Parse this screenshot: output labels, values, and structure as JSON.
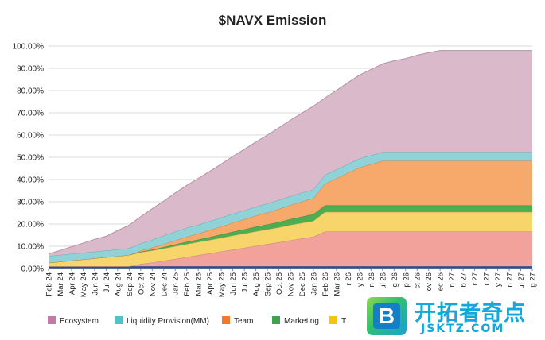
{
  "chart_data": {
    "type": "area",
    "stacked": true,
    "title": "$NAVX Emission",
    "xlabel": "",
    "ylabel": "",
    "ylim": [
      0,
      100
    ],
    "yticks": [
      "0.00%",
      "10.00%",
      "20.00%",
      "30.00%",
      "40.00%",
      "50.00%",
      "60.00%",
      "70.00%",
      "80.00%",
      "90.00%",
      "100.00%"
    ],
    "grid": true,
    "legend_position": "bottom",
    "x": [
      "Feb 24",
      "Mar 24",
      "Apr 24",
      "May 24",
      "Jun 24",
      "Jul 24",
      "Aug 24",
      "Sep 24",
      "Oct 24",
      "Nov 24",
      "Dec 24",
      "Jan 25",
      "Feb 25",
      "Mar 25",
      "Apr 25",
      "May 25",
      "Jun 25",
      "Jul 25",
      "Aug 25",
      "Sep 25",
      "Oct 25",
      "Nov 25",
      "Dec 25",
      "Jan 26",
      "Feb 26",
      "Mar 26",
      "Apr 26",
      "May 26",
      "Jun 26",
      "Jul 26",
      "Aug 26",
      "Sep 26",
      "Oct 26",
      "Nov 26",
      "Dec 26",
      "Jan 27",
      "Feb 27",
      "Mar 27",
      "Apr 27",
      "May 27",
      "Jun 27",
      "Jul 27",
      "Aug 27"
    ],
    "xtick_labels": [
      "Feb 24",
      "Mar 24",
      "Apr 24",
      "May 24",
      "Jun 24",
      "Jul 24",
      "Aug 24",
      "Sep 24",
      "Oct 24",
      "Nov 24",
      "Dec 24",
      "Jan 25",
      "Feb 25",
      "Mar 25",
      "Apr 25",
      "May 25",
      "Jun 25",
      "Jul 25",
      "Aug 25",
      "Sep 25",
      "Oct 25",
      "Nov 25",
      "Dec 25",
      "Jan 26",
      "Feb 26",
      "Mar 26",
      "r 26",
      "y 26",
      "n 26",
      "ul 26",
      "g 26",
      "p 26",
      "ct 26",
      "ov 26",
      "ec 26",
      "n 27",
      "b 27",
      "r 27",
      "r 27",
      "y 27",
      "n 27",
      "ul 27",
      "g 27"
    ],
    "series": [
      {
        "name": "",
        "color": "#1f4fa8",
        "values": [
          1,
          1,
          1,
          1,
          1,
          1,
          1,
          1,
          1,
          1,
          1,
          1,
          1,
          1,
          1,
          1,
          1,
          1,
          1,
          1,
          1,
          1,
          1,
          1,
          1,
          1,
          1,
          1,
          1,
          1,
          1,
          1,
          1,
          1,
          1,
          1,
          1,
          1,
          1,
          1,
          1,
          1,
          1
        ]
      },
      {
        "name": "",
        "color": "#f2a29a",
        "values": [
          0,
          0,
          0,
          0,
          0,
          0,
          0,
          0,
          1,
          1.7,
          2.5,
          3.3,
          4.2,
          5,
          5.8,
          6.7,
          7.5,
          8.3,
          9.2,
          10,
          10.8,
          11.7,
          12.5,
          13.3,
          15.6,
          15.6,
          15.6,
          15.6,
          15.6,
          15.6,
          15.6,
          15.6,
          15.6,
          15.6,
          15.6,
          15.6,
          15.6,
          15.6,
          15.6,
          15.6,
          15.6,
          15.6,
          15.6
        ]
      },
      {
        "name": "T",
        "color": "#f7d56a",
        "values": [
          1.6,
          2.1,
          2.6,
          3.1,
          3.6,
          4.1,
          4.6,
          5.1,
          5.3,
          5.4,
          5.5,
          5.7,
          5.8,
          5.9,
          6,
          6.1,
          6.3,
          6.4,
          6.5,
          6.6,
          6.7,
          6.9,
          7,
          7.1,
          8.8,
          8.8,
          8.8,
          8.8,
          8.8,
          8.8,
          8.8,
          8.8,
          8.8,
          8.8,
          8.8,
          8.8,
          8.8,
          8.8,
          8.8,
          8.8,
          8.8,
          8.8,
          8.8
        ]
      },
      {
        "name": "Marketing",
        "color": "#4cae50",
        "values": [
          0,
          0,
          0,
          0,
          0,
          0,
          0,
          0,
          0.2,
          0.4,
          0.6,
          0.8,
          1,
          1.1,
          1.3,
          1.5,
          1.7,
          1.9,
          2.1,
          2.2,
          2.4,
          2.6,
          2.8,
          3,
          3,
          3,
          3,
          3,
          3,
          3,
          3,
          3,
          3,
          3,
          3,
          3,
          3,
          3,
          3,
          3,
          3,
          3,
          3
        ]
      },
      {
        "name": "Team",
        "color": "#f7a86b",
        "values": [
          0,
          0,
          0,
          0,
          0,
          0,
          0,
          0,
          0.5,
          0.9,
          1.4,
          1.8,
          2.3,
          2.7,
          3.2,
          3.6,
          4.1,
          4.5,
          5,
          5.4,
          5.9,
          6.3,
          6.8,
          7.2,
          9.7,
          12.1,
          14.6,
          17,
          18.5,
          20,
          20,
          20,
          20,
          20,
          20,
          20,
          20,
          20,
          20,
          20,
          20,
          20,
          20
        ]
      },
      {
        "name": "Liquidity Provision(MM)",
        "color": "#8fd3d8",
        "values": [
          3,
          3,
          3,
          3,
          3,
          3,
          3,
          3,
          3.3,
          3.5,
          3.8,
          4,
          4,
          4,
          4,
          4,
          4,
          4,
          4,
          4,
          4,
          4,
          4,
          4,
          4,
          4,
          4,
          4,
          4,
          4,
          4,
          4,
          4,
          4,
          4,
          4,
          4,
          4,
          4,
          4,
          4,
          4,
          4
        ]
      },
      {
        "name": "Ecosystem",
        "color": "#dab9cb",
        "values": [
          1,
          2,
          3.2,
          4.3,
          5.5,
          6.4,
          8.5,
          10.4,
          12,
          14,
          15.5,
          17.4,
          19.1,
          20.8,
          22.4,
          24.1,
          25.8,
          27.5,
          29.1,
          30.8,
          32.5,
          34.2,
          35.8,
          37.4,
          34.6,
          35.6,
          36.6,
          37.6,
          38.6,
          39.6,
          41,
          42,
          43.5,
          44.6,
          45.6,
          45.6,
          45.6,
          45.6,
          45.6,
          45.6,
          45.6,
          45.6,
          45.6
        ]
      }
    ]
  },
  "legend": [
    {
      "label": "Ecosystem",
      "color": "#c47aa6"
    },
    {
      "label": "Liquidity Provision(MM)",
      "color": "#4fc3cb"
    },
    {
      "label": "Team",
      "color": "#f07a2a"
    },
    {
      "label": "Marketing",
      "color": "#3fa34d"
    },
    {
      "label": "T",
      "color": "#f4c21d"
    }
  ],
  "watermark": {
    "logo_letter": "B",
    "name": "开拓者奇点",
    "url": "JSKTZ.COM"
  }
}
